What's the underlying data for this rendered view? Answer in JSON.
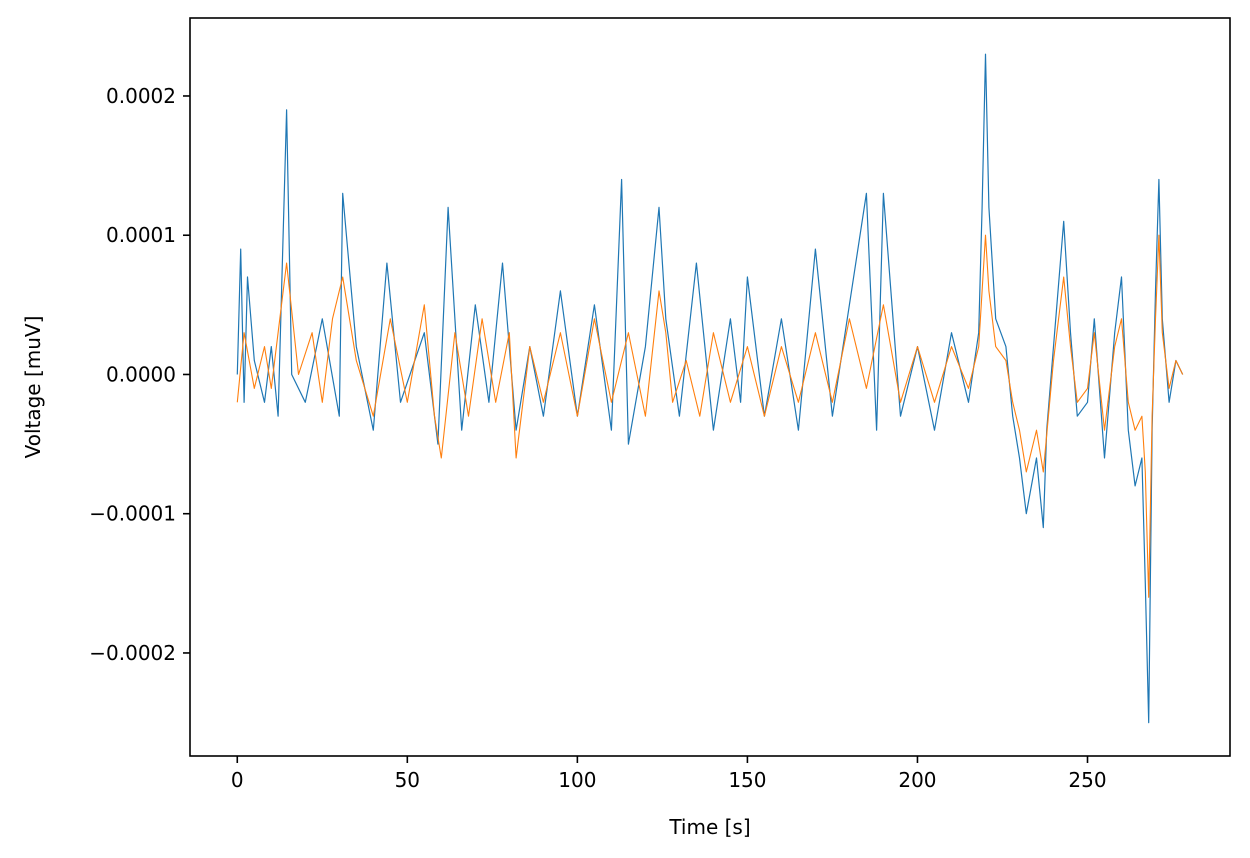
{
  "chart_data": {
    "type": "line",
    "title": "",
    "xlabel": "Time [s]",
    "ylabel": "Voltage [muV]",
    "xlim": [
      -13.9,
      291.9
    ],
    "ylim": [
      -0.000274,
      0.000256
    ],
    "xticks": [
      0,
      50,
      100,
      150,
      200,
      250
    ],
    "xtick_labels": [
      "0",
      "50",
      "100",
      "150",
      "200",
      "250"
    ],
    "yticks": [
      -0.0002,
      -0.0001,
      0.0,
      0.0001,
      0.0002
    ],
    "ytick_labels": [
      "−0.0002",
      "−0.0001",
      "0.0000",
      "0.0001",
      "0.0002"
    ],
    "grid": false,
    "legend": "none",
    "colors": [
      "#1f77b4",
      "#ff7f0e"
    ],
    "series": [
      {
        "x": [
          0,
          1,
          2,
          3,
          5,
          8,
          10,
          12,
          14.5,
          16,
          20,
          25,
          30,
          31,
          35,
          40,
          44,
          48,
          55,
          59,
          62,
          66,
          70,
          74,
          78,
          82,
          86,
          90,
          95,
          100,
          105,
          110,
          113,
          115,
          120,
          124,
          126,
          130,
          135,
          140,
          145,
          148,
          150,
          155,
          160,
          165,
          170,
          175,
          180,
          185,
          188,
          190,
          195,
          200,
          205,
          210,
          215,
          218,
          219,
          220,
          221,
          223,
          226,
          228,
          230,
          232,
          235,
          237,
          238,
          240,
          242,
          243,
          245,
          247,
          250,
          252,
          255,
          258,
          260,
          262,
          264,
          266,
          267,
          268,
          269,
          270,
          271,
          272,
          274,
          276,
          278
        ],
        "values": [
          0.0,
          9e-05,
          -2e-05,
          7e-05,
          1e-05,
          -2e-05,
          2e-05,
          -3e-05,
          0.00019,
          0.0,
          -2e-05,
          4e-05,
          -3e-05,
          0.00013,
          2e-05,
          -4e-05,
          8e-05,
          -2e-05,
          3e-05,
          -5e-05,
          0.00012,
          -4e-05,
          5e-05,
          -2e-05,
          8e-05,
          -4e-05,
          2e-05,
          -3e-05,
          6e-05,
          -3e-05,
          5e-05,
          -4e-05,
          0.00014,
          -5e-05,
          2e-05,
          0.00012,
          4e-05,
          -3e-05,
          8e-05,
          -4e-05,
          4e-05,
          -2e-05,
          7e-05,
          -3e-05,
          4e-05,
          -4e-05,
          9e-05,
          -3e-05,
          5e-05,
          0.00013,
          -4e-05,
          0.00013,
          -3e-05,
          2e-05,
          -4e-05,
          3e-05,
          -2e-05,
          3e-05,
          0.00012,
          0.00023,
          0.00012,
          4e-05,
          2e-05,
          -3e-05,
          -6e-05,
          -0.0001,
          -6e-05,
          -0.00011,
          -4e-05,
          2e-05,
          8e-05,
          0.00011,
          3e-05,
          -3e-05,
          -2e-05,
          4e-05,
          -6e-05,
          3e-05,
          7e-05,
          -4e-05,
          -8e-05,
          -6e-05,
          -0.00015,
          -0.00025,
          -4e-05,
          6e-05,
          0.00014,
          4e-05,
          -2e-05,
          1e-05,
          0.0
        ]
      },
      {
        "x": [
          0,
          2,
          5,
          8,
          10,
          14.5,
          18,
          22,
          25,
          28,
          31,
          35,
          40,
          45,
          50,
          55,
          58,
          60,
          64,
          68,
          72,
          76,
          80,
          82,
          86,
          90,
          95,
          100,
          105,
          110,
          115,
          120,
          124,
          126,
          128,
          132,
          136,
          140,
          145,
          150,
          155,
          160,
          165,
          170,
          175,
          180,
          185,
          190,
          195,
          200,
          205,
          210,
          215,
          218,
          219,
          220,
          221,
          223,
          226,
          228,
          230,
          232,
          235,
          237,
          240,
          242,
          243,
          245,
          247,
          250,
          252,
          255,
          258,
          260,
          262,
          264,
          266,
          267,
          268,
          269,
          270,
          271,
          272,
          274,
          276,
          278
        ],
        "values": [
          -2e-05,
          3e-05,
          -1e-05,
          2e-05,
          -1e-05,
          8e-05,
          0.0,
          3e-05,
          -2e-05,
          4e-05,
          7e-05,
          1e-05,
          -3e-05,
          4e-05,
          -2e-05,
          5e-05,
          -3e-05,
          -6e-05,
          3e-05,
          -3e-05,
          4e-05,
          -2e-05,
          3e-05,
          -6e-05,
          2e-05,
          -2e-05,
          3e-05,
          -3e-05,
          4e-05,
          -2e-05,
          3e-05,
          -3e-05,
          6e-05,
          3e-05,
          -2e-05,
          1e-05,
          -3e-05,
          3e-05,
          -2e-05,
          2e-05,
          -3e-05,
          2e-05,
          -2e-05,
          3e-05,
          -2e-05,
          4e-05,
          -1e-05,
          5e-05,
          -2e-05,
          2e-05,
          -2e-05,
          2e-05,
          -1e-05,
          2e-05,
          6e-05,
          0.0001,
          6e-05,
          2e-05,
          1e-05,
          -2e-05,
          -4e-05,
          -7e-05,
          -4e-05,
          -7e-05,
          1e-05,
          5e-05,
          7e-05,
          2e-05,
          -2e-05,
          -1e-05,
          3e-05,
          -4e-05,
          2e-05,
          4e-05,
          -2e-05,
          -4e-05,
          -3e-05,
          -7e-05,
          -0.00016,
          -3e-05,
          4e-05,
          0.0001,
          3e-05,
          -1e-05,
          1e-05,
          0.0
        ]
      }
    ]
  }
}
